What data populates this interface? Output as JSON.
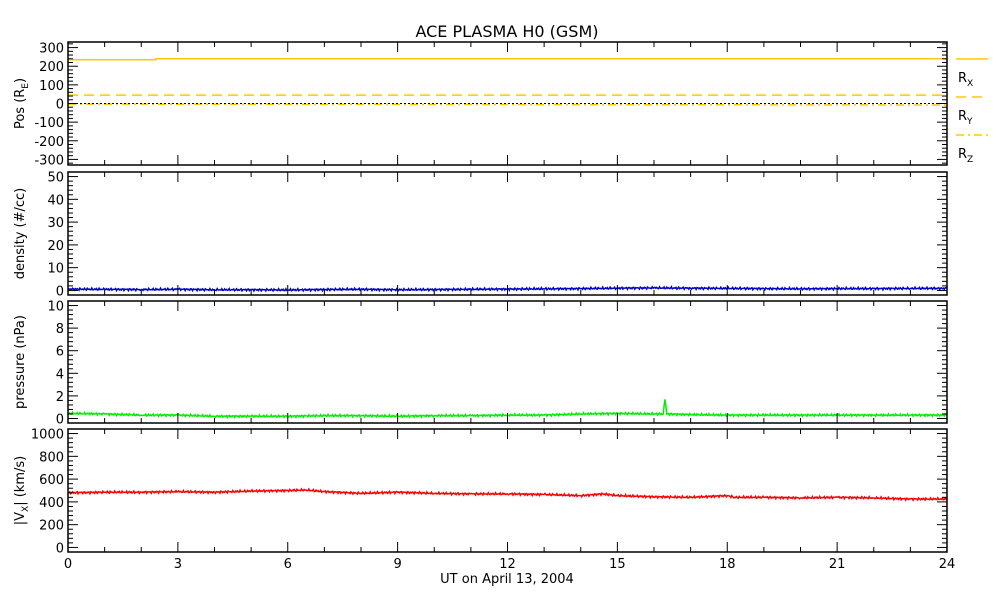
{
  "chart_data": {
    "type": "line",
    "title": "ACE PLASMA H0 (GSM)",
    "xlabel": "UT on April 13, 2004",
    "xlim": [
      0,
      24
    ],
    "xticks": [
      0,
      3,
      6,
      9,
      12,
      15,
      18,
      21,
      24
    ],
    "panels": [
      {
        "ylabel": "Pos (R",
        "ylabel_sub": "E",
        "ylabel_end": ")",
        "ylim": [
          -330,
          330
        ],
        "yticks": [
          -300,
          -200,
          -100,
          0,
          100,
          200,
          300
        ],
        "zero_line": true,
        "legend": [
          {
            "label": "R",
            "sub": "X",
            "style": "solid"
          },
          {
            "label": "R",
            "sub": "Y",
            "style": "dashed"
          },
          {
            "label": "R",
            "sub": "Z",
            "style": "dashdot"
          }
        ],
        "series": [
          {
            "name": "Rx",
            "color": "#ffc800",
            "style": "solid",
            "x": [
              0,
              2.4,
              2.4,
              24
            ],
            "y": [
              235,
              235,
              240,
              240
            ]
          },
          {
            "name": "Ry",
            "color": "#ffc800",
            "style": "dashed",
            "x": [
              0,
              24
            ],
            "y": [
              45,
              45
            ]
          },
          {
            "name": "Rz",
            "color": "#ffc800",
            "style": "dashdot",
            "x": [
              0,
              24
            ],
            "y": [
              -3,
              -8
            ]
          }
        ]
      },
      {
        "ylabel": "density (#/cc)",
        "ylim": [
          -2,
          52
        ],
        "yticks": [
          0,
          10,
          20,
          30,
          40,
          50
        ],
        "series": [
          {
            "name": "density",
            "color": "#0000cc",
            "style": "solid",
            "x": [
              0,
              1,
              2,
              3,
              4,
              5,
              6,
              7,
              8,
              9,
              10,
              11,
              12,
              13,
              14,
              15,
              16,
              17,
              18,
              19,
              20,
              21,
              22,
              23,
              24
            ],
            "y": [
              0.6,
              0.5,
              0.4,
              0.5,
              0.3,
              0.3,
              0.2,
              0.4,
              0.5,
              0.3,
              0.4,
              0.5,
              0.6,
              0.7,
              0.8,
              1.0,
              1.1,
              1.0,
              0.9,
              0.8,
              0.7,
              0.8,
              0.8,
              0.9,
              0.9
            ]
          }
        ]
      },
      {
        "ylabel": "pressure (nPa)",
        "ylim": [
          -0.4,
          10.4
        ],
        "yticks": [
          0,
          2,
          4,
          6,
          8,
          10
        ],
        "series": [
          {
            "name": "pressure",
            "color": "#00ee00",
            "style": "solid",
            "x": [
              0,
              1,
              2,
              3,
              4,
              5,
              6,
              7,
              8,
              9,
              10,
              11,
              12,
              13,
              14,
              15,
              16,
              16.25,
              16.3,
              16.35,
              17,
              18,
              19,
              20,
              21,
              22,
              23,
              24
            ],
            "y": [
              0.45,
              0.4,
              0.3,
              0.3,
              0.2,
              0.2,
              0.2,
              0.25,
              0.25,
              0.2,
              0.25,
              0.25,
              0.3,
              0.3,
              0.4,
              0.45,
              0.4,
              0.4,
              1.7,
              0.4,
              0.35,
              0.3,
              0.3,
              0.3,
              0.3,
              0.3,
              0.3,
              0.3
            ]
          }
        ]
      },
      {
        "ylabel": "|V",
        "ylabel_sub": "X",
        "ylabel_end": "| (km/s)",
        "ylim": [
          -40,
          1040
        ],
        "yticks": [
          0,
          200,
          400,
          600,
          800,
          1000
        ],
        "series": [
          {
            "name": "|Vx|",
            "color": "#ff0000",
            "style": "solid",
            "x": [
              0,
              1,
              2,
              3,
              4,
              5,
              6,
              6.5,
              7,
              8,
              9,
              10,
              11,
              12,
              13,
              14,
              14.6,
              15,
              16,
              17,
              18,
              18.2,
              19,
              20,
              21,
              22,
              23,
              24
            ],
            "y": [
              480,
              485,
              485,
              490,
              485,
              495,
              500,
              505,
              490,
              475,
              485,
              475,
              470,
              470,
              465,
              455,
              470,
              455,
              445,
              440,
              455,
              440,
              440,
              435,
              440,
              435,
              425,
              425
            ]
          }
        ]
      }
    ]
  }
}
